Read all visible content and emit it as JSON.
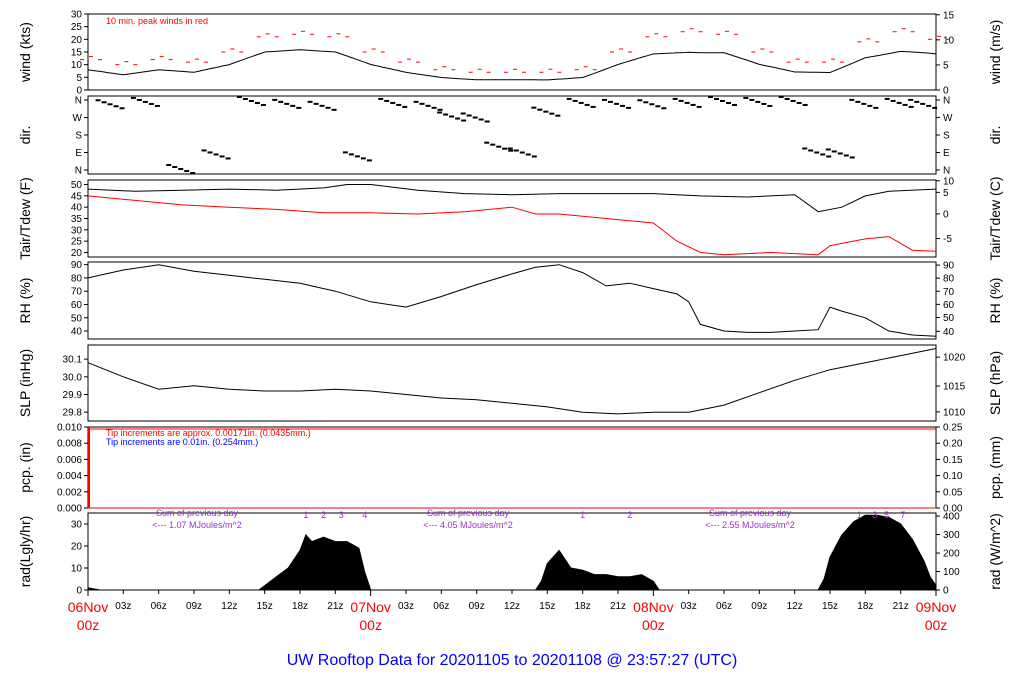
{
  "chart_data": {
    "title": "UW Rooftop Data for 20201105  to  20201108 @ 23:57:27  (UTC)",
    "type": "line",
    "x_axis": {
      "day_labels": [
        {
          "day": "06Nov",
          "time": "00z"
        },
        {
          "day": "07Nov",
          "time": "00z"
        },
        {
          "day": "08Nov",
          "time": "00z"
        },
        {
          "day": "09Nov",
          "time": "00z"
        }
      ],
      "hour_ticks": [
        "03z",
        "06z",
        "09z",
        "12z",
        "15z",
        "18z",
        "21z"
      ],
      "range_hours": [
        0,
        72
      ]
    },
    "panels": [
      {
        "id": "wind",
        "ylabel_left": "wind (kts)",
        "ylabel_right": "wind (m/s)",
        "ylim": [
          0,
          30
        ],
        "left_ticks": [
          "0",
          "5",
          "10",
          "15",
          "20",
          "25",
          "30"
        ],
        "right_ticks": [
          "0",
          "5",
          "10",
          "15"
        ],
        "annotation": "10 min. peak winds in red",
        "series": [
          {
            "x": [
              0,
              3,
              6,
              9,
              12,
              15,
              18,
              21,
              24,
              27,
              30,
              33,
              36,
              39,
              42,
              45,
              48,
              51,
              54,
              57,
              60,
              63,
              66,
              69,
              72
            ],
            "y": [
              8,
              6,
              8,
              7,
              10,
              15,
              16,
              15,
              10,
              7,
              5,
              4,
              4,
              4,
              5,
              10,
              14,
              15,
              15,
              10,
              7,
              7,
              13,
              15,
              14
            ]
          },
          {
            "name": "peak",
            "x": [
              0,
              3,
              6,
              9,
              12,
              15,
              18,
              21,
              24,
              27,
              30,
              33,
              36,
              39,
              42,
              45,
              48,
              51,
              54,
              57,
              60,
              63,
              66,
              69,
              72
            ],
            "y": [
              12,
              10,
              12,
              11,
              15,
              21,
              22,
              21,
              15,
              11,
              8,
              7,
              7,
              7,
              8,
              15,
              21,
              23,
              22,
              15,
              11,
              11,
              19,
              23,
              20
            ]
          }
        ]
      },
      {
        "id": "dir",
        "ylabel_left": "dir.",
        "ylabel_right": "dir.",
        "left_ticks": [
          "N",
          "W",
          "S",
          "E",
          "N"
        ],
        "right_ticks": [
          "N",
          "W",
          "S",
          "E",
          "N"
        ],
        "direction_points": [
          {
            "x": 2,
            "d": 338
          },
          {
            "x": 5,
            "d": 350
          },
          {
            "x": 8,
            "d": 5
          },
          {
            "x": 11,
            "d": 80
          },
          {
            "x": 14,
            "d": 355
          },
          {
            "x": 17,
            "d": 340
          },
          {
            "x": 20,
            "d": 330
          },
          {
            "x": 23,
            "d": 70
          },
          {
            "x": 26,
            "d": 345
          },
          {
            "x": 29,
            "d": 330
          },
          {
            "x": 31,
            "d": 275
          },
          {
            "x": 33,
            "d": 270
          },
          {
            "x": 35,
            "d": 120
          },
          {
            "x": 37,
            "d": 90
          },
          {
            "x": 39,
            "d": 300
          },
          {
            "x": 42,
            "d": 345
          },
          {
            "x": 45,
            "d": 340
          },
          {
            "x": 48,
            "d": 338
          },
          {
            "x": 51,
            "d": 345
          },
          {
            "x": 54,
            "d": 355
          },
          {
            "x": 57,
            "d": 350
          },
          {
            "x": 60,
            "d": 355
          },
          {
            "x": 62,
            "d": 90
          },
          {
            "x": 64,
            "d": 85
          },
          {
            "x": 66,
            "d": 340
          },
          {
            "x": 69,
            "d": 345
          },
          {
            "x": 71,
            "d": 340
          }
        ]
      },
      {
        "id": "temp",
        "ylabel_left": "Tair/Tdew (F)",
        "ylabel_right": "Tair/Tdew (C)",
        "ylim": [
          18,
          52
        ],
        "left_ticks": [
          "20",
          "25",
          "30",
          "35",
          "40",
          "45",
          "50"
        ],
        "right_ticks": [
          "-5",
          "0",
          "5",
          "10"
        ],
        "series": [
          {
            "name": "Tair",
            "color": "#000000",
            "x": [
              0,
              4,
              8,
              12,
              16,
              20,
              22,
              24,
              28,
              32,
              36,
              40,
              44,
              48,
              52,
              56,
              60,
              62,
              64,
              66,
              68,
              72
            ],
            "y": [
              48,
              47,
              47.5,
              48,
              47.5,
              48.5,
              50,
              50,
              47.5,
              46,
              45.5,
              46,
              46,
              46,
              45,
              44.5,
              45.5,
              38,
              40,
              45,
              47,
              48
            ]
          },
          {
            "name": "Tdew",
            "color": "#ff0000",
            "x": [
              0,
              4,
              8,
              12,
              16,
              20,
              24,
              28,
              32,
              36,
              38,
              40,
              44,
              48,
              50,
              52,
              54,
              56,
              58,
              60,
              62,
              63,
              64,
              66,
              68,
              70,
              72
            ],
            "y": [
              45,
              43,
              41,
              40,
              39,
              37.5,
              37.5,
              37,
              38,
              40,
              37,
              37,
              35,
              33,
              25,
              20,
              19,
              19.5,
              20,
              19.5,
              19,
              23,
              24,
              26,
              27,
              21,
              20.5
            ]
          }
        ]
      },
      {
        "id": "rh",
        "ylabel_left": "RH (%)",
        "ylabel_right": "RH (%)",
        "ylim": [
          34,
          92
        ],
        "left_ticks": [
          "40",
          "50",
          "60",
          "70",
          "80",
          "90"
        ],
        "right_ticks": [
          "30",
          "40",
          "50",
          "60",
          "70",
          "80",
          "90"
        ],
        "series": [
          {
            "x": [
              0,
              3,
              6,
              9,
              12,
              15,
              18,
              21,
              24,
              27,
              30,
              33,
              36,
              38,
              40,
              42,
              44,
              46,
              48,
              50,
              51,
              52,
              54,
              56,
              58,
              60,
              62,
              63,
              64,
              66,
              68,
              70,
              72
            ],
            "y": [
              80,
              86,
              90,
              85,
              82,
              79,
              76,
              70,
              62,
              58,
              66,
              75,
              83,
              88,
              90,
              84,
              74,
              76,
              72,
              68,
              62,
              45,
              40,
              39,
              39,
              40,
              41,
              58,
              55,
              50,
              40,
              37,
              36
            ]
          }
        ]
      },
      {
        "id": "slp",
        "ylabel_left": "SLP (inHg)",
        "ylabel_right": "SLP (hPa)",
        "ylim": [
          29.75,
          30.18
        ],
        "left_ticks": [
          "29.8",
          "29.9",
          "30.0",
          "30.1"
        ],
        "right_ticks": [
          "1010",
          "1015",
          "1020"
        ],
        "series": [
          {
            "x": [
              0,
              3,
              6,
              9,
              12,
              15,
              18,
              21,
              24,
              27,
              30,
              33,
              36,
              39,
              42,
              45,
              48,
              51,
              54,
              57,
              60,
              63,
              66,
              69,
              72
            ],
            "y": [
              30.08,
              30.0,
              29.93,
              29.95,
              29.93,
              29.92,
              29.92,
              29.93,
              29.92,
              29.9,
              29.88,
              29.87,
              29.85,
              29.83,
              29.8,
              29.79,
              29.8,
              29.8,
              29.84,
              29.91,
              29.98,
              30.04,
              30.08,
              30.12,
              30.16
            ]
          }
        ]
      },
      {
        "id": "pcp",
        "ylabel_left": "pcp. (in)",
        "ylabel_right": "pcp. (mm)",
        "ylim": [
          0,
          0.01
        ],
        "left_ticks": [
          "0.000",
          "0.002",
          "0.004",
          "0.006",
          "0.008",
          "0.010"
        ],
        "right_ticks": [
          "0.00",
          "0.05",
          "0.10",
          "0.15",
          "0.20",
          "0.25"
        ],
        "note_red": "Tip increments are approx. 0.00171in. (0.0435mm.)",
        "note_blue": "Tip increments are 0.01in. (0.254mm.)",
        "series": [
          {
            "x": [
              0,
              72
            ],
            "y": [
              0,
              0
            ]
          }
        ]
      },
      {
        "id": "rad",
        "ylabel_left": "rad(Lgly/hr)",
        "ylabel_right": "rad (W/m^2)",
        "ylim": [
          0,
          35
        ],
        "left_ticks": [
          "0",
          "10",
          "20",
          "30"
        ],
        "right_ticks": [
          "0",
          "100",
          "200",
          "300",
          "400"
        ],
        "day_sums": [
          {
            "line1": "Sum of previous day",
            "line2": "<--- 1.07 MJoules/m^2"
          },
          {
            "line1": "Sum of previous day",
            "line2": "<--- 4.05 MJoules/m^2"
          },
          {
            "line1": "Sum of previous day",
            "line2": "<--- 2.55 MJoules/m^2"
          }
        ],
        "markers": [
          {
            "x": 18.5,
            "label": "1"
          },
          {
            "x": 20,
            "label": "2"
          },
          {
            "x": 21.5,
            "label": "3"
          },
          {
            "x": 23.5,
            "label": "4"
          },
          {
            "x": 42,
            "label": "1"
          },
          {
            "x": 46,
            "label": "2"
          },
          {
            "x": 65.5,
            "label": "1"
          },
          {
            "x": 66.8,
            "label": "3"
          },
          {
            "x": 67.8,
            "label": "5"
          },
          {
            "x": 69.2,
            "label": "7"
          }
        ],
        "series": [
          {
            "x": [
              0,
              0.5,
              1,
              14.5,
              15,
              16,
              17,
              18,
              18.5,
              19,
              20,
              21,
              22,
              23,
              23.5,
              24
            ],
            "y": [
              1,
              0.5,
              0,
              0,
              2,
              6,
              10,
              18,
              25,
              22,
              24,
              22,
              22,
              19,
              8,
              0
            ]
          },
          {
            "x": [
              38,
              38.5,
              39,
              40,
              41,
              42,
              43,
              44,
              45,
              46,
              47,
              48,
              48.5
            ],
            "y": [
              0,
              4,
              12,
              18,
              10,
              9,
              7,
              7,
              6,
              6,
              7,
              4,
              0
            ]
          },
          {
            "x": [
              62,
              62.5,
              63,
              64,
              65,
              66,
              67,
              68,
              69,
              70,
              71,
              71.5,
              72
            ],
            "y": [
              0,
              5,
              15,
              25,
              31,
              34,
              34,
              33,
              30,
              23,
              13,
              6,
              2
            ]
          }
        ]
      }
    ]
  }
}
